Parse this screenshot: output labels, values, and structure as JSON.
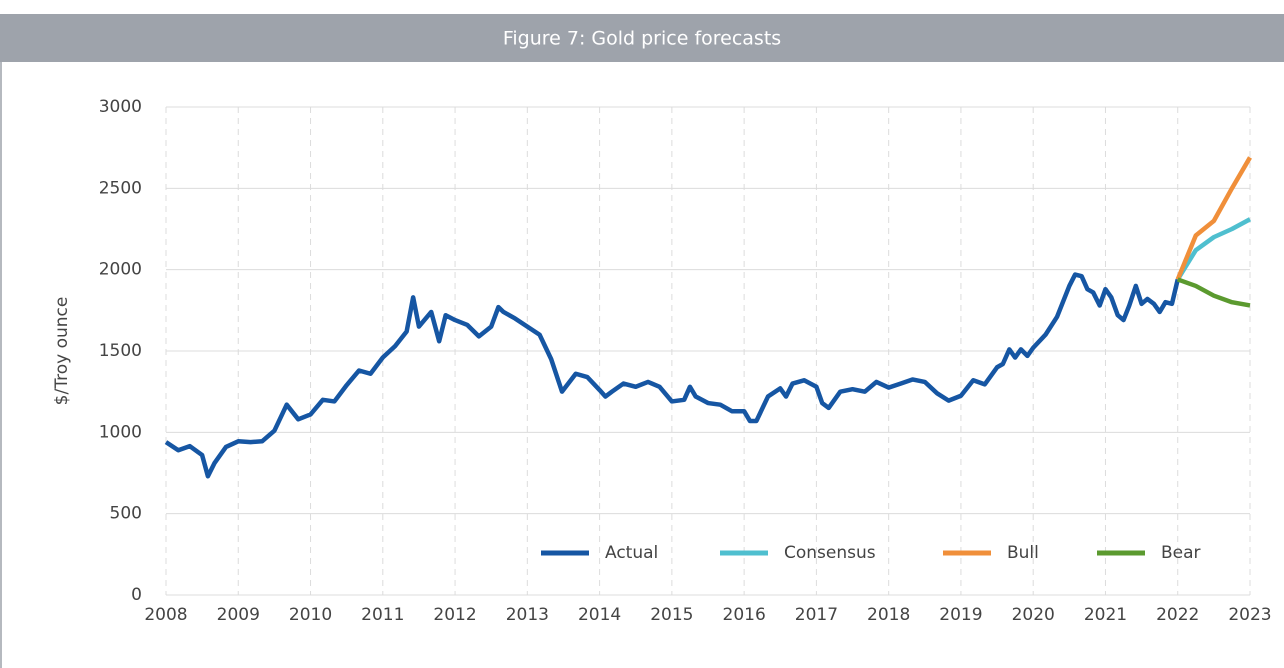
{
  "chart_data": {
    "type": "line",
    "title": "Figure 7: Gold price forecasts",
    "y_label": "$/Troy ounce",
    "xlim": [
      2008,
      2023
    ],
    "xticks": [
      2008,
      2009,
      2010,
      2011,
      2012,
      2013,
      2014,
      2015,
      2016,
      2017,
      2018,
      2019,
      2020,
      2021,
      2022,
      2023
    ],
    "ylim": [
      0,
      3000
    ],
    "yticks": [
      0,
      500,
      1000,
      1500,
      2000,
      2500,
      3000
    ],
    "grid": true,
    "legend": "bottom-right",
    "series": [
      {
        "name": "Actual",
        "color": "#1656a3",
        "x": [
          2008,
          2008.17,
          2008.33,
          2008.5,
          2008.58,
          2008.67,
          2008.83,
          2009,
          2009.17,
          2009.33,
          2009.5,
          2009.67,
          2009.83,
          2010,
          2010.17,
          2010.33,
          2010.5,
          2010.67,
          2010.83,
          2011,
          2011.17,
          2011.33,
          2011.42,
          2011.5,
          2011.67,
          2011.78,
          2011.87,
          2012,
          2012.17,
          2012.33,
          2012.5,
          2012.6,
          2012.67,
          2012.83,
          2013,
          2013.17,
          2013.33,
          2013.48,
          2013.67,
          2013.83,
          2014,
          2014.08,
          2014.17,
          2014.33,
          2014.5,
          2014.67,
          2014.83,
          2015,
          2015.17,
          2015.25,
          2015.33,
          2015.5,
          2015.67,
          2015.83,
          2016,
          2016.08,
          2016.17,
          2016.33,
          2016.5,
          2016.58,
          2016.67,
          2016.83,
          2017,
          2017.08,
          2017.17,
          2017.33,
          2017.5,
          2017.67,
          2017.83,
          2018,
          2018.17,
          2018.33,
          2018.5,
          2018.67,
          2018.83,
          2019,
          2019.17,
          2019.33,
          2019.5,
          2019.58,
          2019.67,
          2019.75,
          2019.83,
          2019.92,
          2020,
          2020.17,
          2020.33,
          2020.5,
          2020.58,
          2020.67,
          2020.75,
          2020.83,
          2020.92,
          2021,
          2021.08,
          2021.17,
          2021.25,
          2021.33,
          2021.42,
          2021.5,
          2021.58,
          2021.67,
          2021.75,
          2021.83,
          2021.92,
          2022
        ],
        "values": [
          940,
          890,
          915,
          860,
          730,
          810,
          910,
          945,
          940,
          945,
          1010,
          1170,
          1080,
          1110,
          1200,
          1190,
          1290,
          1380,
          1360,
          1460,
          1530,
          1620,
          1830,
          1650,
          1740,
          1560,
          1720,
          1690,
          1660,
          1590,
          1650,
          1770,
          1740,
          1700,
          1650,
          1600,
          1450,
          1250,
          1360,
          1340,
          1260,
          1220,
          1250,
          1300,
          1280,
          1310,
          1280,
          1190,
          1200,
          1280,
          1220,
          1180,
          1170,
          1130,
          1130,
          1070,
          1070,
          1220,
          1270,
          1220,
          1300,
          1320,
          1280,
          1180,
          1150,
          1250,
          1265,
          1250,
          1310,
          1275,
          1300,
          1325,
          1310,
          1240,
          1195,
          1225,
          1320,
          1295,
          1400,
          1420,
          1510,
          1460,
          1510,
          1470,
          1520,
          1600,
          1710,
          1900,
          1970,
          1960,
          1880,
          1860,
          1780,
          1880,
          1830,
          1720,
          1690,
          1780,
          1900,
          1790,
          1820,
          1790,
          1740,
          1800,
          1790,
          1940
        ]
      },
      {
        "name": "Consensus",
        "color": "#4fbfcf",
        "x": [
          2022,
          2022.25,
          2022.5,
          2022.75,
          2023
        ],
        "values": [
          1940,
          2120,
          2200,
          2250,
          2310
        ]
      },
      {
        "name": "Bull",
        "color": "#f08f3a",
        "x": [
          2022,
          2022.25,
          2022.5,
          2022.75,
          2023
        ],
        "values": [
          1940,
          2210,
          2300,
          2500,
          2690
        ]
      },
      {
        "name": "Bear",
        "color": "#5b9a2f",
        "x": [
          2022,
          2022.25,
          2022.5,
          2022.75,
          2023
        ],
        "values": [
          1940,
          1900,
          1840,
          1800,
          1780
        ]
      }
    ]
  }
}
